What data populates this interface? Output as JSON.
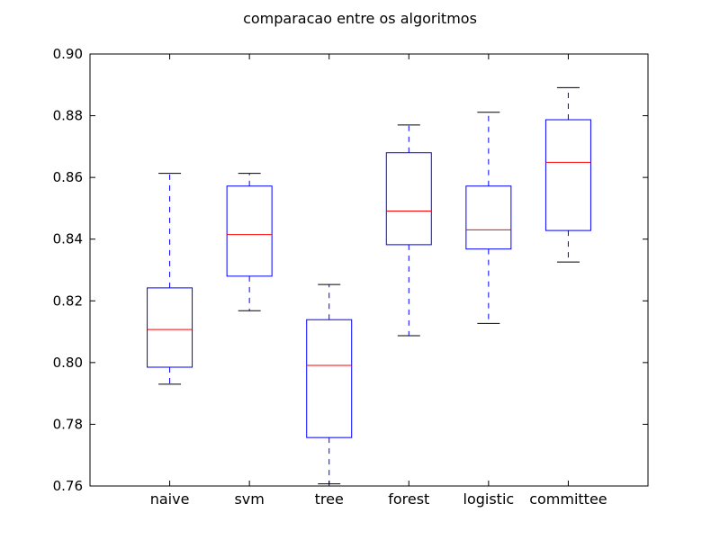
{
  "chart_data": {
    "type": "box",
    "title": "comparacao entre os algoritmos",
    "xlabel": "",
    "ylabel": "",
    "ylim": [
      0.76,
      0.9
    ],
    "yticks": [
      "0.76",
      "0.78",
      "0.80",
      "0.82",
      "0.84",
      "0.86",
      "0.88",
      "0.90"
    ],
    "grid": false,
    "categories": [
      "naive",
      "svm",
      "tree",
      "forest",
      "logistic",
      "committee"
    ],
    "boxes": [
      {
        "label": "naive",
        "whisker_low": 0.793,
        "q1": 0.7985,
        "median": 0.8107,
        "q3": 0.8242,
        "whisker_high": 0.8613
      },
      {
        "label": "svm",
        "whisker_low": 0.8168,
        "q1": 0.828,
        "median": 0.8415,
        "q3": 0.8572,
        "whisker_high": 0.8613
      },
      {
        "label": "tree",
        "whisker_low": 0.7607,
        "q1": 0.7757,
        "median": 0.7991,
        "q3": 0.8139,
        "whisker_high": 0.8253
      },
      {
        "label": "forest",
        "whisker_low": 0.8087,
        "q1": 0.8382,
        "median": 0.8491,
        "q3": 0.868,
        "whisker_high": 0.877
      },
      {
        "label": "logistic",
        "whisker_low": 0.8127,
        "q1": 0.8368,
        "median": 0.843,
        "q3": 0.8572,
        "whisker_high": 0.8811
      },
      {
        "label": "committee",
        "whisker_low": 0.8326,
        "q1": 0.8428,
        "median": 0.8649,
        "q3": 0.8787,
        "whisker_high": 0.8891
      }
    ],
    "colors": {
      "box": "#0000ff",
      "median": "#ff0000",
      "cap": "#000000",
      "axes": "#000000",
      "background": "#ffffff"
    }
  }
}
